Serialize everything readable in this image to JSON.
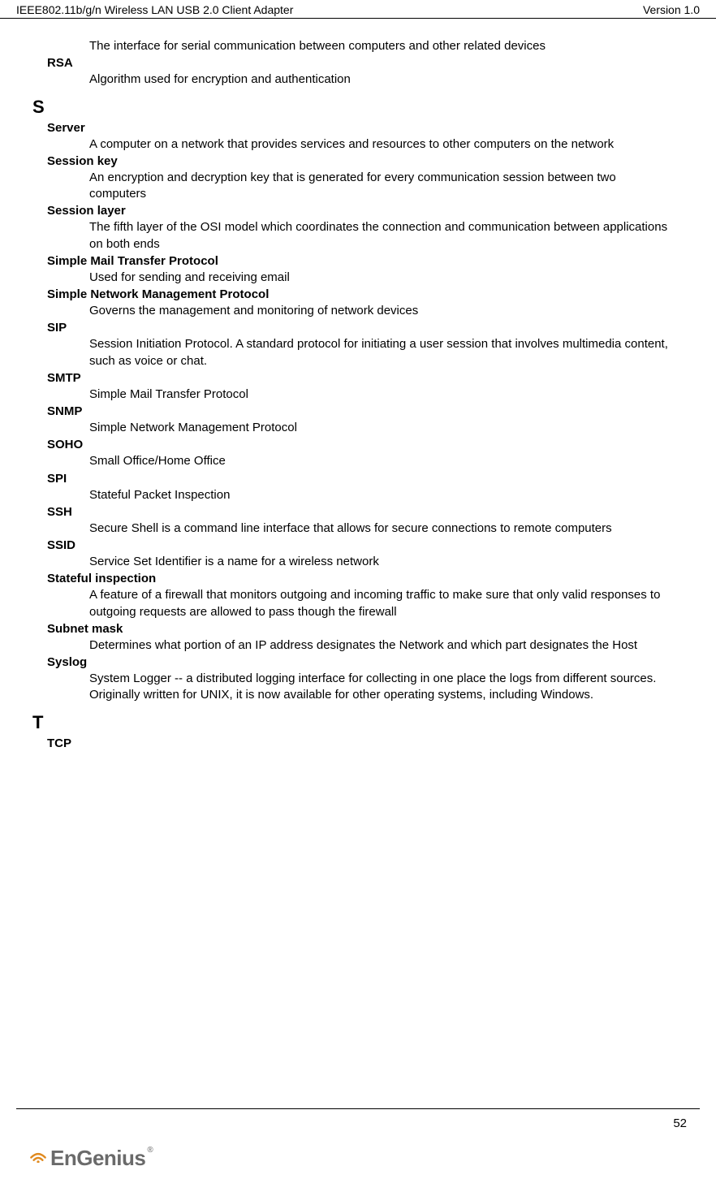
{
  "header": {
    "left": "IEEE802.11b/g/n Wireless LAN USB 2.0 Client Adapter",
    "right": "Version 1.0"
  },
  "entries": [
    {
      "type": "def",
      "text": "The interface for serial communication between computers and other related devices"
    },
    {
      "type": "term",
      "text": "RSA"
    },
    {
      "type": "def",
      "text": "Algorithm used for encryption and authentication"
    },
    {
      "type": "section",
      "text": "S"
    },
    {
      "type": "term",
      "text": "Server"
    },
    {
      "type": "def",
      "text": "A computer on a network that provides services and resources to other computers on the network"
    },
    {
      "type": "term",
      "text": "Session key"
    },
    {
      "type": "def",
      "text": "An encryption and decryption key that is generated for every communication session between two computers"
    },
    {
      "type": "term",
      "text": "Session layer"
    },
    {
      "type": "def",
      "text": "The fifth layer of the OSI model which coordinates the connection and communication between applications on both ends"
    },
    {
      "type": "term",
      "text": "Simple Mail Transfer Protocol"
    },
    {
      "type": "def",
      "text": "Used for sending and receiving email"
    },
    {
      "type": "term",
      "text": "Simple Network Management Protocol"
    },
    {
      "type": "def",
      "text": "Governs the management and monitoring of network devices"
    },
    {
      "type": "term",
      "text": "SIP"
    },
    {
      "type": "def",
      "text": "Session Initiation Protocol. A standard protocol for initiating a user session that involves multimedia content, such as voice or chat."
    },
    {
      "type": "term",
      "text": "SMTP"
    },
    {
      "type": "def",
      "text": "Simple Mail Transfer Protocol"
    },
    {
      "type": "term",
      "text": "SNMP"
    },
    {
      "type": "def",
      "text": "Simple Network Management Protocol"
    },
    {
      "type": "term",
      "text": "SOHO"
    },
    {
      "type": "def",
      "text": "Small Office/Home Office"
    },
    {
      "type": "term",
      "text": "SPI"
    },
    {
      "type": "def",
      "text": "Stateful Packet Inspection"
    },
    {
      "type": "term",
      "text": "SSH"
    },
    {
      "type": "def",
      "text": "Secure Shell is a command line interface that allows for secure connections to remote computers"
    },
    {
      "type": "term",
      "text": "SSID"
    },
    {
      "type": "def",
      "text": "Service Set Identifier is a name for a wireless network"
    },
    {
      "type": "term",
      "text": "Stateful inspection"
    },
    {
      "type": "def",
      "text": "A feature of a firewall that monitors outgoing and incoming traffic to make sure that only valid responses to outgoing requests are allowed to pass though the firewall"
    },
    {
      "type": "term",
      "text": "Subnet mask"
    },
    {
      "type": "def",
      "text": "Determines what portion of an IP address designates the Network and which part designates the Host"
    },
    {
      "type": "term",
      "text": "Syslog"
    },
    {
      "type": "def",
      "text": "System Logger -- a distributed logging interface for collecting in one place the logs from different sources. Originally written for UNIX, it is now available for other operating systems, including Windows."
    },
    {
      "type": "section",
      "text": "T"
    },
    {
      "type": "term",
      "text": "TCP"
    }
  ],
  "footer": {
    "page_number": "52",
    "logo_text_1": "EnGen",
    "logo_text_2": "i",
    "logo_text_3": "us",
    "logo_reg": "®"
  },
  "colors": {
    "text": "#000000",
    "logo_gray": "#6a6a6a",
    "logo_orange": "#e08a1f",
    "background": "#ffffff"
  }
}
